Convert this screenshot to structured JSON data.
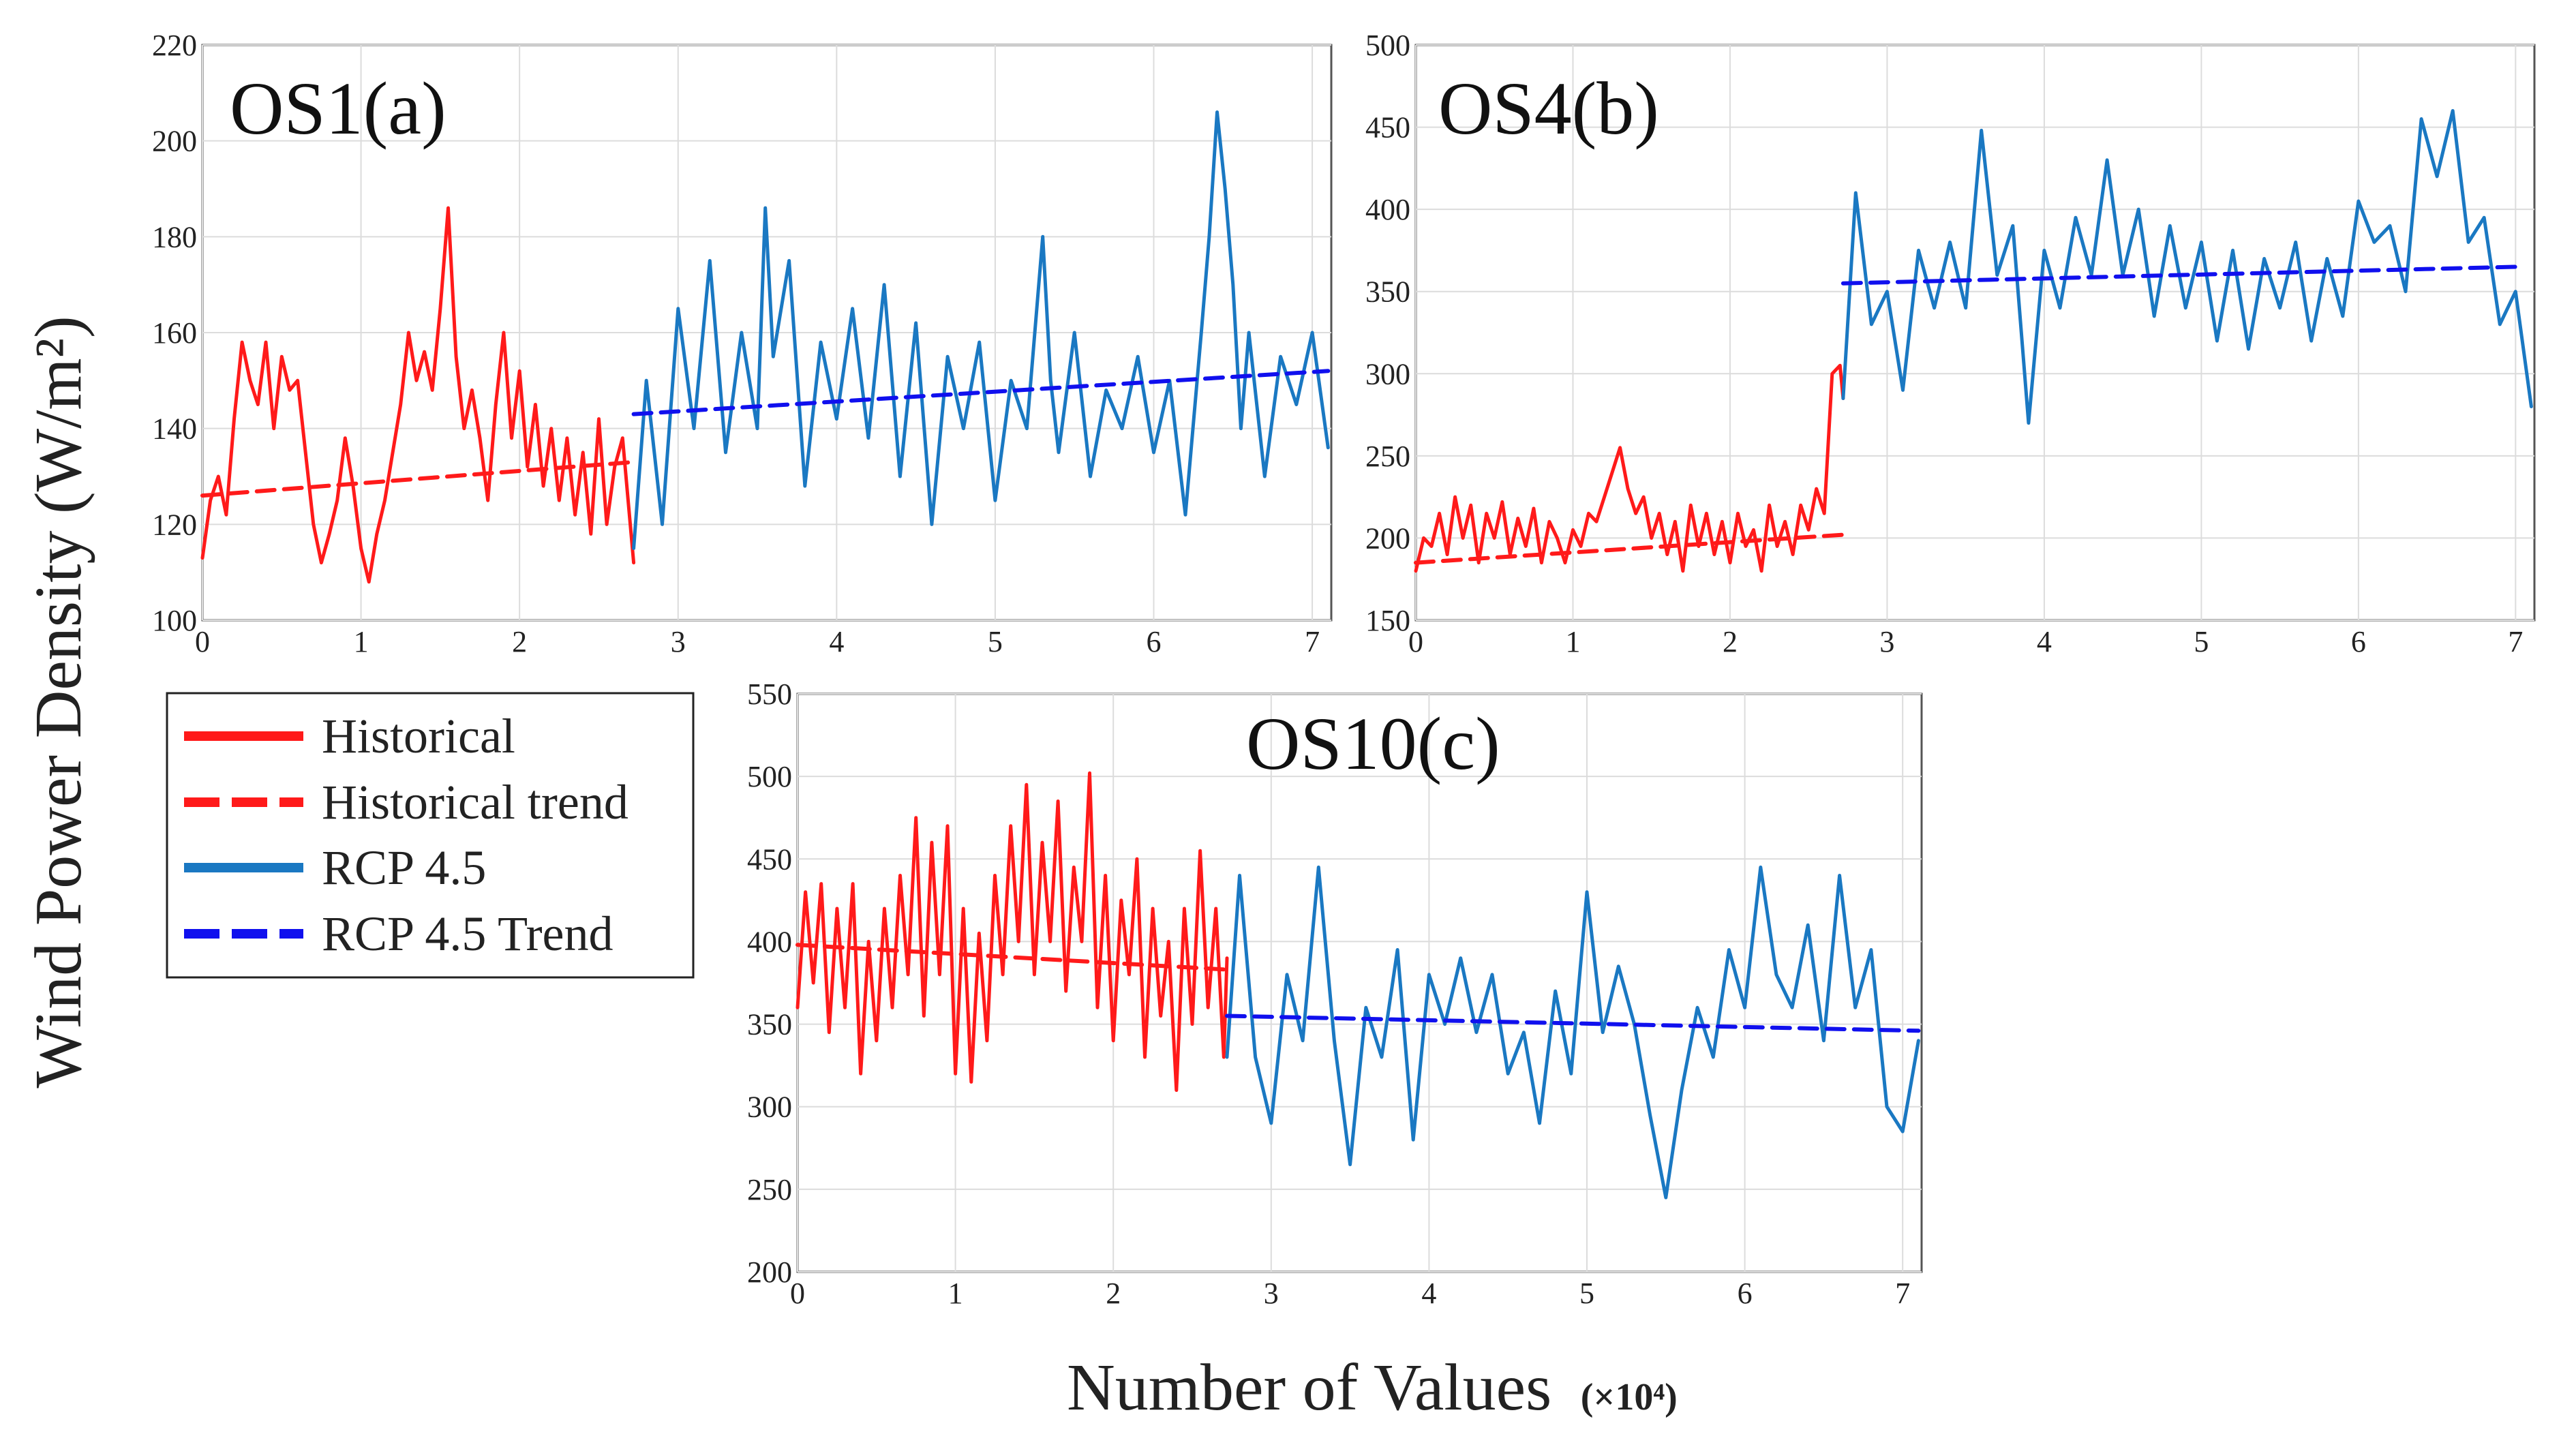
{
  "figure": {
    "ylabel": "Wind Power Density (W/m²)",
    "xlabel": "Number of Values",
    "xlabel_multiplier": "(×10⁴)"
  },
  "legend": {
    "items": [
      {
        "label": "Historical",
        "color": "#ff1a1a",
        "style": "solid"
      },
      {
        "label": "Historical trend",
        "color": "#ff1a1a",
        "style": "dashed"
      },
      {
        "label": "RCP 4.5",
        "color": "#1a78c2",
        "style": "solid"
      },
      {
        "label": "RCP 4.5 Trend",
        "color": "#1010ee",
        "style": "dashed"
      }
    ]
  },
  "chart_data": [
    {
      "id": "a",
      "type": "line",
      "title": "OS1(a)",
      "xlim": [
        0,
        7.12
      ],
      "ylim": [
        100,
        220
      ],
      "xticks": [
        0,
        1,
        2,
        3,
        4,
        5,
        6,
        7
      ],
      "yticks": [
        100,
        120,
        140,
        160,
        180,
        200,
        220
      ],
      "series": [
        {
          "name": "Historical",
          "color": "#ff1a1a",
          "style": "solid",
          "x": [
            0,
            0.05,
            0.1,
            0.15,
            0.2,
            0.25,
            0.3,
            0.35,
            0.4,
            0.45,
            0.5,
            0.55,
            0.6,
            0.65,
            0.7,
            0.75,
            0.8,
            0.85,
            0.9,
            0.95,
            1.0,
            1.05,
            1.1,
            1.15,
            1.2,
            1.25,
            1.3,
            1.35,
            1.4,
            1.45,
            1.5,
            1.55,
            1.6,
            1.65,
            1.7,
            1.75,
            1.8,
            1.85,
            1.9,
            1.95,
            2.0,
            2.05,
            2.1,
            2.15,
            2.2,
            2.25,
            2.3,
            2.35,
            2.4,
            2.45,
            2.5,
            2.55,
            2.6,
            2.65,
            2.72
          ],
          "y": [
            113,
            125,
            130,
            122,
            142,
            158,
            150,
            145,
            158,
            140,
            155,
            148,
            150,
            135,
            120,
            112,
            118,
            125,
            138,
            128,
            115,
            108,
            118,
            125,
            135,
            145,
            160,
            150,
            156,
            148,
            165,
            186,
            155,
            140,
            148,
            138,
            125,
            145,
            160,
            138,
            152,
            132,
            145,
            128,
            140,
            125,
            138,
            122,
            135,
            118,
            142,
            120,
            132,
            138,
            112
          ]
        },
        {
          "name": "Historical trend",
          "color": "#ff1a1a",
          "style": "dashed",
          "x": [
            0,
            2.72
          ],
          "y": [
            126,
            133
          ]
        },
        {
          "name": "RCP 4.5",
          "color": "#1a78c2",
          "style": "solid",
          "x": [
            2.72,
            2.8,
            2.9,
            3.0,
            3.1,
            3.2,
            3.3,
            3.4,
            3.5,
            3.55,
            3.6,
            3.7,
            3.8,
            3.9,
            4.0,
            4.1,
            4.2,
            4.3,
            4.4,
            4.5,
            4.6,
            4.7,
            4.8,
            4.9,
            5.0,
            5.1,
            5.2,
            5.3,
            5.35,
            5.4,
            5.5,
            5.6,
            5.7,
            5.8,
            5.9,
            6.0,
            6.1,
            6.2,
            6.3,
            6.35,
            6.4,
            6.45,
            6.5,
            6.55,
            6.6,
            6.7,
            6.8,
            6.9,
            7.0,
            7.1
          ],
          "y": [
            115,
            150,
            120,
            165,
            140,
            175,
            135,
            160,
            140,
            186,
            155,
            175,
            128,
            158,
            142,
            165,
            138,
            170,
            130,
            162,
            120,
            155,
            140,
            158,
            125,
            150,
            140,
            180,
            150,
            135,
            160,
            130,
            148,
            140,
            155,
            135,
            150,
            122,
            160,
            180,
            206,
            190,
            170,
            140,
            160,
            130,
            155,
            145,
            160,
            136
          ]
        },
        {
          "name": "RCP 4.5 Trend",
          "color": "#1010ee",
          "style": "dashed",
          "x": [
            2.72,
            7.1
          ],
          "y": [
            143,
            152
          ]
        }
      ]
    },
    {
      "id": "b",
      "type": "line",
      "title": "OS4(b)",
      "xlim": [
        0,
        7.12
      ],
      "ylim": [
        150,
        500
      ],
      "xticks": [
        0,
        1,
        2,
        3,
        4,
        5,
        6,
        7
      ],
      "yticks": [
        150,
        200,
        250,
        300,
        350,
        400,
        450,
        500
      ],
      "series": [
        {
          "name": "Historical",
          "color": "#ff1a1a",
          "style": "solid",
          "x": [
            0,
            0.05,
            0.1,
            0.15,
            0.2,
            0.25,
            0.3,
            0.35,
            0.4,
            0.45,
            0.5,
            0.55,
            0.6,
            0.65,
            0.7,
            0.75,
            0.8,
            0.85,
            0.9,
            0.95,
            1.0,
            1.05,
            1.1,
            1.15,
            1.2,
            1.25,
            1.3,
            1.35,
            1.4,
            1.45,
            1.5,
            1.55,
            1.6,
            1.65,
            1.7,
            1.75,
            1.8,
            1.85,
            1.9,
            1.95,
            2.0,
            2.05,
            2.1,
            2.15,
            2.2,
            2.25,
            2.3,
            2.35,
            2.4,
            2.45,
            2.5,
            2.55,
            2.6,
            2.65,
            2.7,
            2.72
          ],
          "y": [
            180,
            200,
            195,
            215,
            190,
            225,
            200,
            220,
            185,
            215,
            200,
            222,
            190,
            212,
            195,
            218,
            185,
            210,
            200,
            185,
            205,
            195,
            215,
            210,
            225,
            240,
            255,
            230,
            215,
            225,
            200,
            215,
            190,
            210,
            180,
            220,
            195,
            215,
            190,
            210,
            185,
            215,
            195,
            205,
            180,
            220,
            195,
            210,
            190,
            220,
            205,
            230,
            215,
            300,
            305,
            285
          ]
        },
        {
          "name": "Historical trend",
          "color": "#ff1a1a",
          "style": "dashed",
          "x": [
            0,
            2.72
          ],
          "y": [
            185,
            202
          ]
        },
        {
          "name": "RCP 4.5",
          "color": "#1a78c2",
          "style": "solid",
          "x": [
            2.72,
            2.8,
            2.9,
            3.0,
            3.1,
            3.2,
            3.3,
            3.4,
            3.5,
            3.6,
            3.7,
            3.8,
            3.9,
            4.0,
            4.1,
            4.2,
            4.3,
            4.4,
            4.5,
            4.6,
            4.7,
            4.8,
            4.9,
            5.0,
            5.1,
            5.2,
            5.3,
            5.4,
            5.5,
            5.6,
            5.7,
            5.8,
            5.9,
            6.0,
            6.1,
            6.2,
            6.3,
            6.4,
            6.5,
            6.6,
            6.7,
            6.8,
            6.9,
            7.0,
            7.1
          ],
          "y": [
            285,
            410,
            330,
            350,
            290,
            375,
            340,
            380,
            340,
            448,
            360,
            390,
            270,
            375,
            340,
            395,
            360,
            430,
            360,
            400,
            335,
            390,
            340,
            380,
            320,
            375,
            315,
            370,
            340,
            380,
            320,
            370,
            335,
            405,
            380,
            390,
            350,
            455,
            420,
            460,
            380,
            395,
            330,
            350,
            280
          ]
        },
        {
          "name": "RCP 4.5 Trend",
          "color": "#1010ee",
          "style": "dashed",
          "x": [
            2.72,
            7.0
          ],
          "y": [
            355,
            365
          ]
        }
      ]
    },
    {
      "id": "c",
      "type": "line",
      "title": "OS10(c)",
      "xlim": [
        0,
        7.12
      ],
      "ylim": [
        200,
        550
      ],
      "xticks": [
        0,
        1,
        2,
        3,
        4,
        5,
        6,
        7
      ],
      "yticks": [
        200,
        250,
        300,
        350,
        400,
        450,
        500,
        550
      ],
      "series": [
        {
          "name": "Historical",
          "color": "#ff1a1a",
          "style": "solid",
          "x": [
            0,
            0.05,
            0.1,
            0.15,
            0.2,
            0.25,
            0.3,
            0.35,
            0.4,
            0.45,
            0.5,
            0.55,
            0.6,
            0.65,
            0.7,
            0.75,
            0.8,
            0.85,
            0.9,
            0.95,
            1.0,
            1.05,
            1.1,
            1.15,
            1.2,
            1.25,
            1.3,
            1.35,
            1.4,
            1.45,
            1.5,
            1.55,
            1.6,
            1.65,
            1.7,
            1.75,
            1.8,
            1.85,
            1.9,
            1.95,
            2.0,
            2.05,
            2.1,
            2.15,
            2.2,
            2.25,
            2.3,
            2.35,
            2.4,
            2.45,
            2.5,
            2.55,
            2.6,
            2.65,
            2.7,
            2.72
          ],
          "y": [
            360,
            430,
            375,
            435,
            345,
            420,
            360,
            435,
            320,
            400,
            340,
            420,
            360,
            440,
            380,
            475,
            355,
            460,
            380,
            470,
            320,
            420,
            315,
            405,
            340,
            440,
            380,
            470,
            400,
            495,
            380,
            460,
            400,
            485,
            370,
            445,
            400,
            502,
            360,
            440,
            340,
            425,
            380,
            450,
            330,
            420,
            355,
            400,
            310,
            420,
            350,
            455,
            360,
            420,
            330,
            390
          ]
        },
        {
          "name": "Historical trend",
          "color": "#ff1a1a",
          "style": "dashed",
          "x": [
            0,
            2.72
          ],
          "y": [
            398,
            383
          ]
        },
        {
          "name": "RCP 4.5",
          "color": "#1a78c2",
          "style": "solid",
          "x": [
            2.72,
            2.8,
            2.9,
            3.0,
            3.1,
            3.2,
            3.3,
            3.4,
            3.5,
            3.6,
            3.7,
            3.8,
            3.9,
            4.0,
            4.1,
            4.2,
            4.3,
            4.4,
            4.5,
            4.6,
            4.7,
            4.8,
            4.9,
            5.0,
            5.1,
            5.2,
            5.3,
            5.4,
            5.5,
            5.6,
            5.7,
            5.8,
            5.9,
            6.0,
            6.1,
            6.2,
            6.3,
            6.4,
            6.5,
            6.6,
            6.7,
            6.8,
            6.9,
            7.0,
            7.1
          ],
          "y": [
            330,
            440,
            330,
            290,
            380,
            340,
            445,
            340,
            265,
            360,
            330,
            395,
            280,
            380,
            350,
            390,
            345,
            380,
            320,
            345,
            290,
            370,
            320,
            430,
            345,
            385,
            350,
            295,
            245,
            310,
            360,
            330,
            395,
            360,
            445,
            380,
            360,
            410,
            340,
            440,
            360,
            395,
            300,
            285,
            340
          ]
        },
        {
          "name": "RCP 4.5 Trend",
          "color": "#1010ee",
          "style": "dashed",
          "x": [
            2.72,
            7.1
          ],
          "y": [
            355,
            346
          ]
        }
      ]
    }
  ]
}
